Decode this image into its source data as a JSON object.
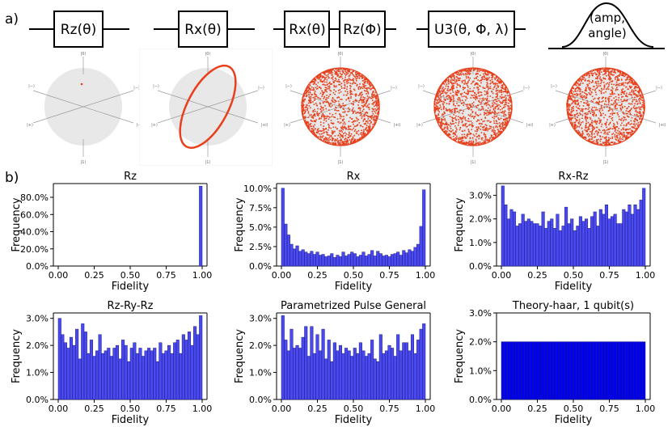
{
  "labels": {
    "a": "a)",
    "b": "b)"
  },
  "gates": [
    {
      "boxes": [
        "Rz(θ)"
      ]
    },
    {
      "boxes": [
        "Rx(θ)"
      ]
    },
    {
      "boxes": [
        "Rx(θ)",
        "Rz(Φ)"
      ]
    },
    {
      "boxes": [
        "U3(θ, Φ, λ)"
      ]
    },
    {
      "pulse_lines": [
        "(amp,",
        "angle)"
      ]
    }
  ],
  "bloch": {
    "axis_labels": {
      "top": "|0⟩",
      "bottom": "|1⟩",
      "left": "|−⟩",
      "right": "|−⟩",
      "lower_left": "|+⟩",
      "lower_right": "|+i⟩"
    },
    "fill_color": "#e8e8e8",
    "point_color": "#e8401c",
    "panels": [
      {
        "mode": "dot"
      },
      {
        "mode": "ring"
      },
      {
        "mode": "cloud"
      },
      {
        "mode": "cloud"
      },
      {
        "mode": "cloud"
      }
    ]
  },
  "bar_color": "#4a4af0",
  "bar_edge": "#1a1a80",
  "chart_data": [
    {
      "type": "bar",
      "title": "Rz",
      "xlabel": "Fidelity",
      "ylabel": "Frequency",
      "xticks": [
        "0.00",
        "0.25",
        "0.50",
        "0.75",
        "1.00"
      ],
      "yticks": [
        "0.0%",
        "20.0%",
        "40.0%",
        "60.0%",
        "80.0%"
      ],
      "ylim": [
        0,
        96
      ],
      "bins": 50,
      "values": [
        0,
        0,
        0,
        0,
        0,
        0,
        0,
        0,
        0,
        0,
        0,
        0,
        0,
        0,
        0,
        0,
        0,
        0,
        0,
        0,
        0,
        0,
        0,
        0,
        0,
        0,
        0,
        0,
        0,
        0,
        0,
        0,
        0,
        0,
        0,
        0,
        0,
        0,
        0,
        0,
        0,
        0,
        0,
        0,
        0,
        0,
        0,
        0,
        0,
        93
      ]
    },
    {
      "type": "bar",
      "title": "Rx",
      "xlabel": "Fidelity",
      "ylabel": "Frequency",
      "xticks": [
        "0.00",
        "0.25",
        "0.50",
        "0.75",
        "1.00"
      ],
      "yticks": [
        "0.0%",
        "2.5%",
        "5.0%",
        "7.5%",
        "10.0%"
      ],
      "ylim": [
        0,
        10.6
      ],
      "bins": 50,
      "values": [
        10.0,
        5.4,
        4.0,
        2.8,
        2.2,
        2.6,
        1.9,
        2.1,
        1.8,
        1.6,
        1.9,
        1.5,
        1.8,
        1.4,
        1.5,
        1.2,
        1.3,
        1.6,
        1.1,
        1.4,
        1.2,
        1.8,
        1.3,
        1.5,
        1.8,
        1.6,
        1.2,
        1.4,
        1.8,
        1.3,
        1.5,
        2.0,
        1.3,
        1.9,
        1.6,
        1.3,
        1.4,
        1.2,
        1.5,
        1.6,
        1.8,
        1.4,
        2.0,
        1.7,
        2.1,
        1.9,
        2.4,
        2.8,
        5.1,
        9.8
      ]
    },
    {
      "type": "bar",
      "title": "Rx-Rz",
      "xlabel": "Fidelity",
      "ylabel": "Frequency",
      "xticks": [
        "0.00",
        "0.25",
        "0.50",
        "0.75",
        "1.00"
      ],
      "yticks": [
        "0.0%",
        "1.0%",
        "2.0%",
        "3.0%"
      ],
      "ylim": [
        0,
        3.5
      ],
      "bins": 50,
      "values": [
        3.4,
        2.6,
        2.0,
        2.4,
        2.3,
        1.7,
        1.8,
        2.2,
        1.9,
        2.0,
        1.9,
        1.8,
        1.8,
        1.7,
        2.3,
        1.6,
        1.9,
        2.0,
        1.6,
        2.2,
        1.5,
        1.7,
        2.5,
        1.8,
        2.0,
        1.5,
        1.7,
        2.1,
        1.9,
        2.0,
        1.6,
        2.1,
        2.3,
        1.7,
        2.4,
        2.2,
        2.6,
        2.0,
        2.1,
        2.2,
        1.8,
        1.8,
        2.4,
        2.3,
        2.6,
        2.2,
        2.6,
        2.4,
        2.8,
        3.3
      ]
    },
    {
      "type": "bar",
      "title": "Rz-Ry-Rz",
      "xlabel": "Fidelity",
      "ylabel": "Frequency",
      "xticks": [
        "0.00",
        "0.25",
        "0.50",
        "0.75",
        "1.00"
      ],
      "yticks": [
        "0.0%",
        "1.0%",
        "2.0%",
        "3.0%"
      ],
      "ylim": [
        0,
        3.2
      ],
      "bins": 50,
      "values": [
        3.0,
        2.4,
        2.1,
        1.9,
        2.3,
        2.0,
        2.6,
        1.5,
        2.8,
        2.5,
        1.7,
        2.2,
        1.6,
        1.8,
        2.4,
        1.7,
        1.8,
        1.9,
        1.6,
        1.9,
        2.0,
        1.5,
        2.2,
        2.0,
        1.4,
        1.9,
        2.1,
        1.7,
        1.9,
        1.6,
        1.8,
        1.9,
        1.8,
        1.9,
        1.4,
        2.1,
        1.7,
        1.8,
        2.0,
        1.7,
        2.1,
        2.2,
        1.7,
        2.4,
        2.2,
        2.5,
        2.0,
        2.7,
        2.4,
        3.1
      ]
    },
    {
      "type": "bar",
      "title": "Parametrized Pulse General",
      "xlabel": "Fidelity",
      "ylabel": "Frequency",
      "xticks": [
        "0.00",
        "0.25",
        "0.50",
        "0.75",
        "1.00"
      ],
      "yticks": [
        "0.0%",
        "1.0%",
        "2.0%",
        "3.0%"
      ],
      "ylim": [
        0,
        3.2
      ],
      "bins": 50,
      "values": [
        3.1,
        2.2,
        1.8,
        2.6,
        1.9,
        2.0,
        1.9,
        2.3,
        2.7,
        1.6,
        2.7,
        1.7,
        2.4,
        1.8,
        2.6,
        1.5,
        2.2,
        1.4,
        2.1,
        1.8,
        2.0,
        1.7,
        1.9,
        1.8,
        1.6,
        1.9,
        1.7,
        2.1,
        1.8,
        1.6,
        1.7,
        2.2,
        1.5,
        1.4,
        2.4,
        1.7,
        1.8,
        2.0,
        1.9,
        1.6,
        2.4,
        1.8,
        2.1,
        2.1,
        1.8,
        2.4,
        1.7,
        2.2,
        2.6,
        2.8
      ]
    },
    {
      "type": "bar",
      "title": "Theory-haar, 1 qubit(s)",
      "xlabel": "Fidelity",
      "ylabel": "Frequency",
      "xticks": [
        "0.00",
        "0.25",
        "0.50",
        "0.75",
        "1.00"
      ],
      "yticks": [
        "0.0%",
        "1.0%",
        "2.0%",
        "3.0%"
      ],
      "ylim": [
        0,
        3.0
      ],
      "bins": 50,
      "uniform_value": 2.0,
      "values": [
        2.0,
        2.0,
        2.0,
        2.0,
        2.0,
        2.0,
        2.0,
        2.0,
        2.0,
        2.0,
        2.0,
        2.0,
        2.0,
        2.0,
        2.0,
        2.0,
        2.0,
        2.0,
        2.0,
        2.0,
        2.0,
        2.0,
        2.0,
        2.0,
        2.0,
        2.0,
        2.0,
        2.0,
        2.0,
        2.0,
        2.0,
        2.0,
        2.0,
        2.0,
        2.0,
        2.0,
        2.0,
        2.0,
        2.0,
        2.0,
        2.0,
        2.0,
        2.0,
        2.0,
        2.0,
        2.0,
        2.0,
        2.0,
        2.0,
        2.0
      ],
      "dark": true
    }
  ]
}
